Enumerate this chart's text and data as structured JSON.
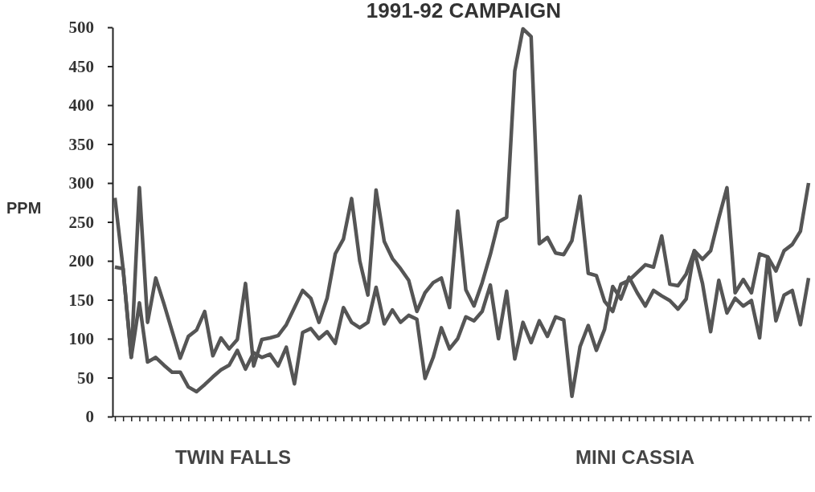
{
  "chart_data": {
    "type": "line",
    "title": "1991-92 CAMPAIGN",
    "ylabel": "PPM",
    "categories": [
      null,
      null,
      null,
      null,
      null,
      null,
      null,
      null,
      null,
      null,
      null,
      null,
      null,
      null,
      null,
      null,
      null,
      null,
      null,
      null,
      null,
      null,
      null,
      null,
      null,
      null,
      null,
      null,
      null,
      null,
      null,
      null,
      null,
      null,
      null,
      null,
      null,
      null,
      null,
      null,
      null,
      null,
      null,
      null,
      null,
      null,
      null,
      null,
      null,
      null,
      null,
      null,
      null,
      null,
      null,
      null,
      null,
      null,
      null,
      null,
      null,
      null,
      null,
      null,
      null,
      null,
      null,
      null,
      null,
      null,
      null,
      null,
      null,
      null,
      null,
      null,
      null,
      null,
      null,
      null,
      null,
      null,
      null,
      null,
      null,
      null
    ],
    "series": [
      {
        "color": "#555555",
        "values": [
          281,
          190,
          76,
          294,
          121,
          178,
          145,
          110,
          75,
          103,
          111,
          135,
          78,
          101,
          87,
          99,
          171,
          65,
          99,
          101,
          104,
          118,
          140,
          162,
          152,
          121,
          152,
          209,
          228,
          280,
          200,
          156,
          291,
          225,
          203,
          190,
          175,
          135,
          159,
          172,
          178,
          140,
          264,
          163,
          142,
          172,
          208,
          250,
          256,
          444,
          498,
          488,
          222,
          230,
          210,
          208,
          226,
          283,
          184,
          181,
          148,
          135,
          170,
          175,
          185,
          195,
          192,
          232,
          170,
          168,
          183,
          213,
          202,
          213,
          255,
          294,
          159,
          176,
          159,
          209,
          205,
          187,
          213,
          221,
          238,
          300
        ]
      },
      {
        "color": "#555555",
        "values": [
          192,
          190,
          76,
          146,
          70,
          76,
          66,
          57,
          57,
          38,
          32,
          41,
          51,
          60,
          66,
          85,
          61,
          82,
          76,
          80,
          65,
          89,
          42,
          108,
          113,
          100,
          109,
          94,
          140,
          121,
          114,
          121,
          166,
          119,
          137,
          121,
          130,
          125,
          49,
          76,
          114,
          87,
          100,
          128,
          123,
          135,
          169,
          100,
          161,
          74,
          121,
          95,
          123,
          103,
          128,
          124,
          26,
          90,
          117,
          85,
          112,
          167,
          151,
          179,
          159,
          142,
          162,
          155,
          149,
          138,
          151,
          213,
          171,
          109,
          175,
          133,
          152,
          142,
          149,
          101,
          205,
          123,
          156,
          162,
          118,
          178
        ]
      }
    ],
    "ylim": [
      0,
      500
    ],
    "yticks": [
      0,
      50,
      100,
      150,
      200,
      250,
      300,
      350,
      400,
      450,
      500
    ],
    "annotations": [
      "TWIN FALLS",
      "MINI CASSIA"
    ],
    "marker": "none",
    "line_style": "solid"
  }
}
